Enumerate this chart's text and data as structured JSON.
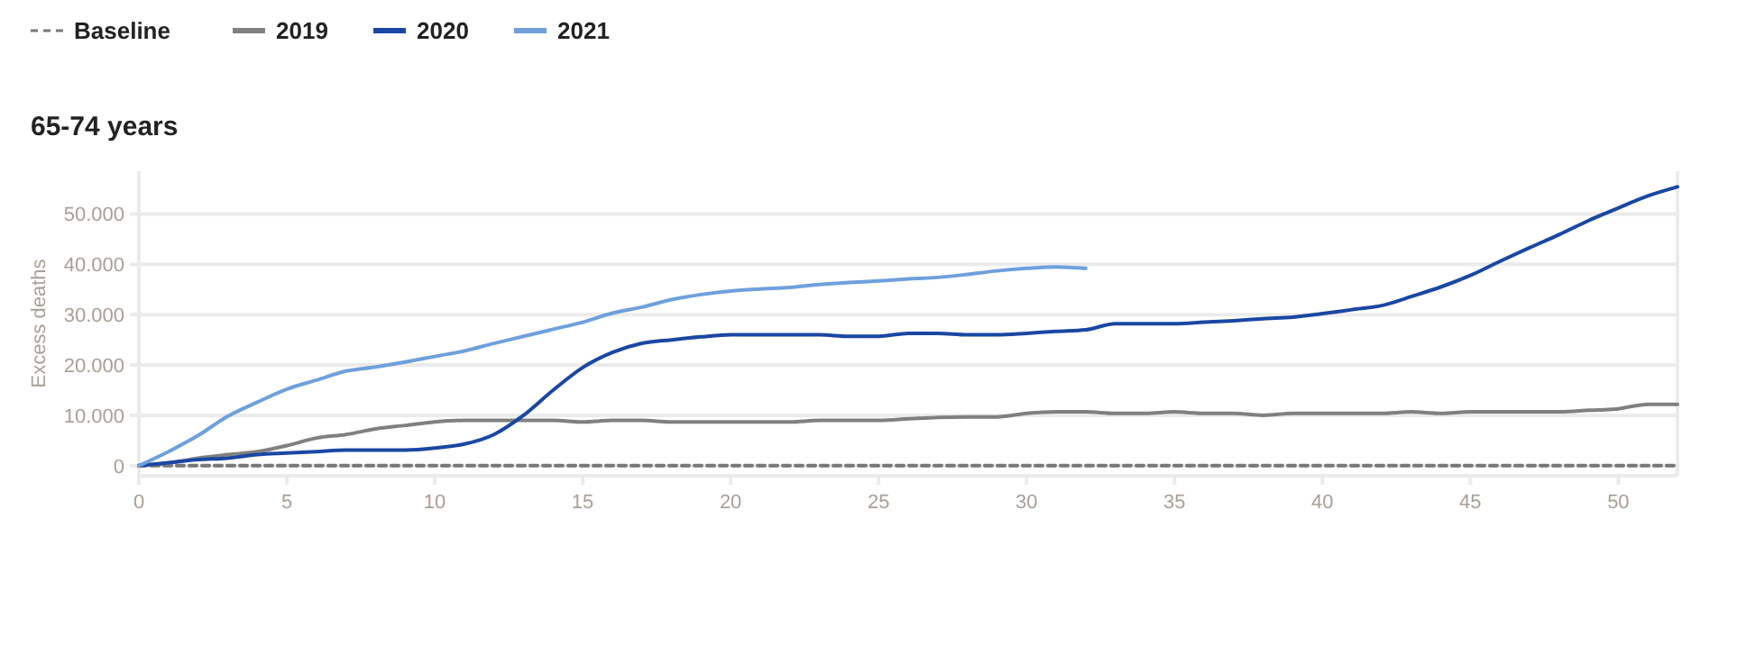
{
  "chart_data": {
    "type": "line",
    "title": "65-74 years",
    "ylabel": "Excess deaths",
    "x": [
      0,
      1,
      2,
      3,
      4,
      5,
      6,
      7,
      8,
      9,
      10,
      11,
      12,
      13,
      14,
      15,
      16,
      17,
      18,
      19,
      20,
      21,
      22,
      23,
      24,
      25,
      26,
      27,
      28,
      29,
      30,
      31,
      32,
      33,
      34,
      35,
      36,
      37,
      38,
      39,
      40,
      41,
      42,
      43,
      44,
      45,
      46,
      47,
      48,
      49,
      50,
      51,
      52
    ],
    "series": [
      {
        "name": "Baseline",
        "color": "#777777",
        "line_style": "dashed",
        "values": [
          0,
          0,
          0,
          0,
          0,
          0,
          0,
          0,
          0,
          0,
          0,
          0,
          0,
          0,
          0,
          0,
          0,
          0,
          0,
          0,
          0,
          0,
          0,
          0,
          0,
          0,
          0,
          0,
          0,
          0,
          0,
          0,
          0,
          0,
          0,
          0,
          0,
          0,
          0,
          0,
          0,
          0,
          0,
          0,
          0,
          0,
          0,
          0,
          0,
          0,
          0,
          0,
          0
        ]
      },
      {
        "name": "2019",
        "color": "#808080",
        "values": [
          0,
          500,
          1500,
          2200,
          2800,
          4000,
          5500,
          6200,
          7300,
          8000,
          8700,
          9000,
          9000,
          9000,
          9000,
          8700,
          9000,
          9000,
          8700,
          8700,
          8700,
          8700,
          8700,
          9000,
          9000,
          9000,
          9300,
          9600,
          9700,
          9700,
          10400,
          10700,
          10700,
          10400,
          10400,
          10700,
          10400,
          10400,
          10000,
          10400,
          10400,
          10400,
          10400,
          10700,
          10400,
          10700,
          10700,
          10700,
          10700,
          11000,
          11300,
          12200,
          12200
        ]
      },
      {
        "name": "2020",
        "color": "#1a47a3",
        "values": [
          0,
          600,
          1200,
          1500,
          2200,
          2500,
          2800,
          3100,
          3100,
          3100,
          3500,
          4300,
          6200,
          10000,
          15000,
          19500,
          22500,
          24300,
          25000,
          25600,
          26000,
          26000,
          26000,
          26000,
          25700,
          25700,
          26300,
          26300,
          26000,
          26000,
          26300,
          26700,
          27000,
          28200,
          28200,
          28200,
          28500,
          28800,
          29200,
          29500,
          30200,
          31000,
          31800,
          33600,
          35500,
          37800,
          40600,
          43300,
          45900,
          48700,
          51200,
          53600,
          55400
        ]
      },
      {
        "name": "2021",
        "color": "#6fa0dc",
        "values": [
          0,
          2800,
          6000,
          9800,
          12600,
          15200,
          17000,
          18800,
          19600,
          20600,
          21700,
          22800,
          24300,
          25700,
          27100,
          28500,
          30300,
          31500,
          33000,
          34000,
          34700,
          35100,
          35400,
          36000,
          36400,
          36700,
          37100,
          37400,
          38000,
          38700,
          39200,
          39500,
          39200,
          null,
          null,
          null,
          null,
          null,
          null,
          null,
          null,
          null,
          null,
          null,
          null,
          null,
          null,
          null,
          null,
          null,
          null,
          null,
          null
        ]
      }
    ],
    "xlim": [
      0,
      52
    ],
    "xticks": [
      0,
      5,
      10,
      15,
      20,
      25,
      30,
      35,
      40,
      45,
      50
    ],
    "ylim": [
      -2000,
      58500
    ],
    "yticks": [
      0,
      {
        "value": 10000,
        "label": "10.000"
      },
      {
        "value": 20000,
        "label": "20.000"
      },
      {
        "value": 30000,
        "label": "30.000"
      },
      {
        "value": 40000,
        "label": "40.000"
      },
      {
        "value": 50000,
        "label": "50.000"
      }
    ],
    "grid": "y",
    "legend": "top left",
    "marker": "none"
  }
}
